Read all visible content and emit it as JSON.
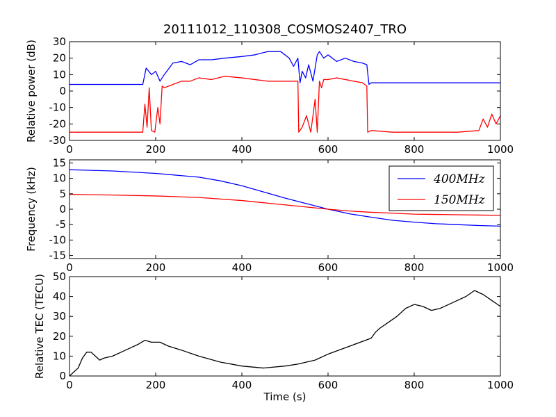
{
  "figure": {
    "title": "20111012_110308_COSMOS2407_TRO"
  },
  "chart_data": [
    {
      "type": "line",
      "panel": "power",
      "title": "20111012_110308_COSMOS2407_TRO",
      "xlabel": "",
      "ylabel": "Relative power (dB)",
      "xlim": [
        0,
        1000
      ],
      "ylim": [
        -30,
        30
      ],
      "xticks": [
        0,
        200,
        400,
        600,
        800,
        1000
      ],
      "yticks": [
        -30,
        -20,
        -10,
        0,
        10,
        20,
        30
      ],
      "grid": false,
      "legend": "none",
      "series": [
        {
          "color": "#0000ff",
          "x": [
            0,
            50,
            100,
            150,
            170,
            178,
            190,
            200,
            210,
            220,
            240,
            260,
            280,
            300,
            330,
            360,
            400,
            430,
            460,
            490,
            510,
            520,
            530,
            535,
            540,
            548,
            555,
            565,
            575,
            580,
            590,
            600,
            620,
            640,
            660,
            680,
            690,
            695,
            700,
            750,
            800,
            850,
            900,
            950,
            1000
          ],
          "y": [
            4,
            4,
            4,
            4,
            4,
            14,
            10,
            12,
            6,
            10,
            17,
            18,
            16,
            19,
            19,
            20,
            21,
            22,
            24,
            24,
            20,
            15,
            20,
            5,
            12,
            8,
            16,
            6,
            22,
            24,
            20,
            22,
            18,
            20,
            18,
            17,
            16,
            4,
            5,
            5,
            5,
            5,
            5,
            5,
            5
          ]
        },
        {
          "color": "#ff0000",
          "x": [
            0,
            50,
            100,
            150,
            170,
            175,
            180,
            185,
            190,
            198,
            205,
            210,
            215,
            220,
            240,
            260,
            280,
            300,
            330,
            360,
            400,
            430,
            460,
            490,
            520,
            530,
            532,
            540,
            550,
            560,
            570,
            575,
            580,
            585,
            590,
            600,
            620,
            640,
            660,
            680,
            690,
            692,
            700,
            750,
            800,
            850,
            900,
            950,
            960,
            970,
            980,
            990,
            1000
          ],
          "y": [
            -25,
            -25,
            -25,
            -25,
            -25,
            -8,
            -22,
            2,
            -24,
            -25,
            -10,
            -20,
            3,
            2,
            4,
            6,
            6,
            8,
            7,
            9,
            8,
            7,
            6,
            6,
            6,
            6,
            -25,
            -22,
            -15,
            -25,
            -5,
            -25,
            6,
            2,
            7,
            7,
            8,
            7,
            6,
            5,
            3,
            -25,
            -24,
            -25,
            -25,
            -25,
            -25,
            -24,
            -17,
            -22,
            -14,
            -20,
            -15
          ]
        }
      ]
    },
    {
      "type": "line",
      "panel": "frequency",
      "xlabel": "",
      "ylabel": "Frequency (kHz)",
      "xlim": [
        0,
        1000
      ],
      "ylim": [
        -16,
        16
      ],
      "xticks": [
        0,
        200,
        400,
        600,
        800,
        1000
      ],
      "yticks": [
        -15,
        -10,
        -5,
        0,
        5,
        10,
        15
      ],
      "grid": false,
      "legend": "top-right",
      "series": [
        {
          "name": "400MHz",
          "color": "#0000ff",
          "x": [
            0,
            100,
            200,
            300,
            350,
            400,
            450,
            500,
            550,
            600,
            650,
            700,
            750,
            800,
            850,
            900,
            950,
            1000
          ],
          "y": [
            12.8,
            12.4,
            11.6,
            10.4,
            9.2,
            7.6,
            5.6,
            3.6,
            1.8,
            0,
            -1.5,
            -2.6,
            -3.6,
            -4.2,
            -4.7,
            -5.0,
            -5.3,
            -5.5
          ]
        },
        {
          "name": "150MHz",
          "color": "#ff0000",
          "x": [
            0,
            100,
            200,
            300,
            350,
            400,
            450,
            500,
            550,
            600,
            650,
            700,
            750,
            800,
            850,
            900,
            950,
            1000
          ],
          "y": [
            4.8,
            4.6,
            4.3,
            3.8,
            3.3,
            2.8,
            2.1,
            1.4,
            0.7,
            0,
            -0.6,
            -1.0,
            -1.3,
            -1.6,
            -1.7,
            -1.8,
            -1.9,
            -2.0
          ]
        }
      ]
    },
    {
      "type": "line",
      "panel": "tec",
      "xlabel": "Time (s)",
      "ylabel": "Relative TEC (TECU)",
      "xlim": [
        0,
        1000
      ],
      "ylim": [
        0,
        50
      ],
      "xticks": [
        0,
        200,
        400,
        600,
        800,
        1000
      ],
      "yticks": [
        0,
        10,
        20,
        30,
        40,
        50
      ],
      "grid": false,
      "legend": "none",
      "series": [
        {
          "color": "#000000",
          "x": [
            0,
            10,
            20,
            30,
            40,
            50,
            60,
            70,
            80,
            100,
            120,
            140,
            160,
            175,
            190,
            210,
            230,
            260,
            300,
            350,
            400,
            450,
            500,
            530,
            550,
            570,
            600,
            650,
            700,
            710,
            720,
            740,
            760,
            780,
            800,
            820,
            840,
            860,
            880,
            900,
            920,
            940,
            960,
            980,
            1000
          ],
          "y": [
            0,
            2,
            4,
            9,
            12,
            12,
            10,
            8,
            9,
            10,
            12,
            14,
            16,
            18,
            17,
            17,
            15,
            13,
            10,
            7,
            5,
            4,
            5,
            6,
            7,
            8,
            11,
            15,
            19,
            22,
            24,
            27,
            30,
            34,
            36,
            35,
            33,
            34,
            36,
            38,
            40,
            43,
            41,
            38,
            35
          ]
        }
      ]
    }
  ]
}
